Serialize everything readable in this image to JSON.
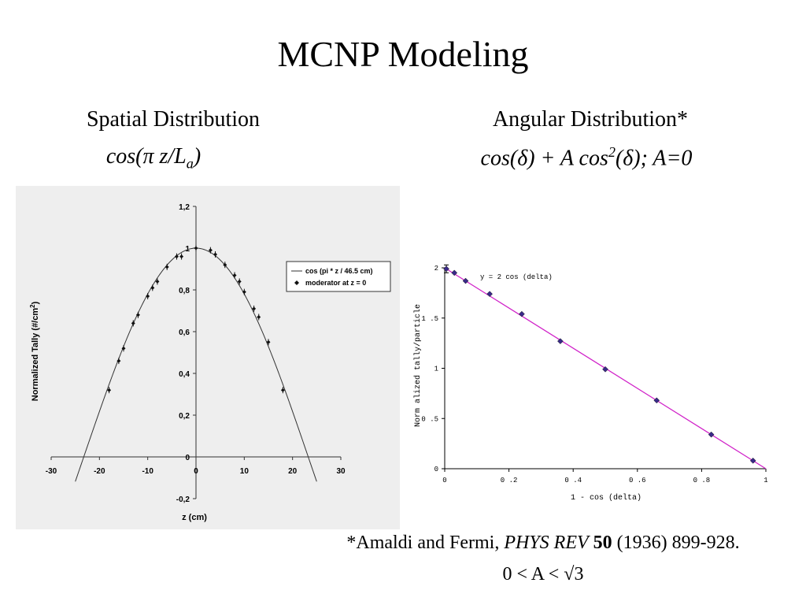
{
  "slide": {
    "title": "MCNP Modeling",
    "left_heading": "Spatial Distribution",
    "left_formula": {
      "prefix": "cos(",
      "pi": "π",
      "mid": " z/L",
      "sub": "a",
      "suffix": ")"
    },
    "right_heading": "Angular Distribution*",
    "right_formula": {
      "part1": "cos(δ) + A cos",
      "sup": "2",
      "part2": "(δ);  A=0"
    },
    "citation": {
      "prefix": "*Amaldi and Fermi, ",
      "journal": "PHYS REV",
      "volume": "50",
      "rest": " (1936) 899-928."
    },
    "range_note": "0 < A < √3"
  },
  "chart_data": [
    {
      "type": "line",
      "xlabel": "z (cm)",
      "ylabel": "Normalized Tally (#/cm",
      "ylabel_sup": "2",
      "ylabel_suffix": ")",
      "xlim": [
        -30,
        30
      ],
      "ylim": [
        -0.2,
        1.2
      ],
      "xticks": [
        "-30",
        "-20",
        "-10",
        "0",
        "10",
        "20",
        "30"
      ],
      "xtick_values": [
        -30,
        -20,
        -10,
        0,
        10,
        20,
        30
      ],
      "yticks": [
        "-0,2",
        "0",
        "0,2",
        "0,4",
        "0,6",
        "0,8",
        "1",
        "1,2"
      ],
      "ytick_values": [
        -0.2,
        0,
        0.2,
        0.4,
        0.6,
        0.8,
        1,
        1.2
      ],
      "legend": [
        "cos (pi * z / 46.5 cm)",
        "moderator at z = 0"
      ],
      "legend_position": "right",
      "grid": false,
      "curve": {
        "name": "cos (pi * z / 46.5 cm)",
        "L": 46.5,
        "x_range": [
          -25,
          25
        ]
      },
      "points": {
        "name": "moderator at z = 0",
        "x": [
          -18,
          -16,
          -15,
          -13,
          -12,
          -10,
          -9,
          -8,
          -6,
          -4,
          -3,
          0,
          3,
          4,
          6,
          8,
          9,
          10,
          12,
          13,
          15,
          18
        ],
        "y": [
          0.32,
          0.46,
          0.52,
          0.64,
          0.68,
          0.77,
          0.81,
          0.84,
          0.91,
          0.96,
          0.96,
          1.0,
          0.99,
          0.97,
          0.92,
          0.87,
          0.84,
          0.79,
          0.71,
          0.67,
          0.55,
          0.32
        ]
      }
    },
    {
      "type": "scatter",
      "xlabel": "1 - cos (delta)",
      "ylabel": "Norm alized tally/particle",
      "xlim": [
        0,
        1
      ],
      "ylim": [
        0,
        2
      ],
      "xticks": [
        "0",
        "0 .2",
        "0 .4",
        "0 .6",
        "0 .8",
        "1"
      ],
      "xtick_values": [
        0,
        0.2,
        0.4,
        0.6,
        0.8,
        1
      ],
      "yticks": [
        "0",
        "0 .5",
        "1",
        "1 .5",
        "2"
      ],
      "ytick_values": [
        0,
        0.5,
        1,
        1.5,
        2
      ],
      "annotation": "y = 2 cos (delta)",
      "grid": false,
      "fit_line": {
        "x": [
          0,
          1
        ],
        "y": [
          2,
          0
        ],
        "color": "#d020c8"
      },
      "points": {
        "x": [
          0.005,
          0.03,
          0.065,
          0.14,
          0.24,
          0.36,
          0.5,
          0.66,
          0.83,
          0.96
        ],
        "y": [
          1.99,
          1.95,
          1.87,
          1.74,
          1.54,
          1.27,
          0.99,
          0.68,
          0.34,
          0.08
        ]
      },
      "point_color": "#3a2a8a"
    }
  ]
}
